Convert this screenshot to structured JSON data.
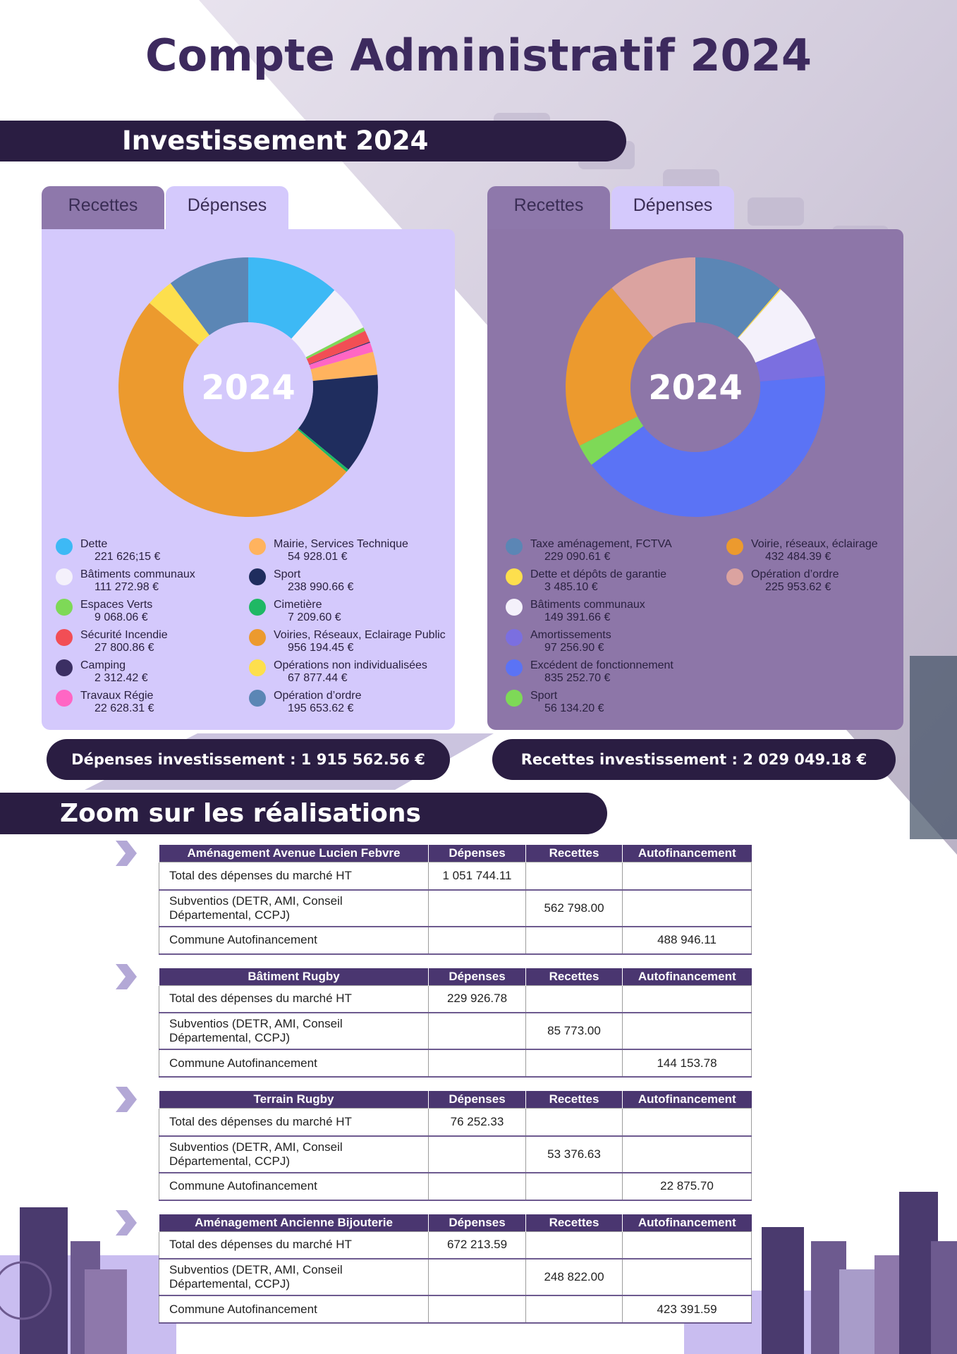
{
  "title": "Compte Administratif 2024",
  "sections": [
    "Investissement 2024",
    "Zoom sur les réalisations"
  ],
  "chart_data": [
    {
      "type": "pie",
      "tabs": [
        "Recettes",
        "Dépenses"
      ],
      "center_label": "2024",
      "categories": [
        "Dette",
        "Bâtiments communaux",
        "Espaces Verts",
        "Sécurité Incendie",
        "Camping",
        "Travaux Régie",
        "Mairie, Services Technique",
        "Sport",
        "Cimetière",
        "Voiries, Réseaux, Eclairage Public",
        "Opérations non individualisées",
        "Opération d’ordre"
      ],
      "values": [
        221626.15,
        111272.98,
        9068.06,
        27800.86,
        2312.42,
        22628.31,
        54928.01,
        238990.66,
        7209.6,
        956194.45,
        67877.44,
        195653.62
      ],
      "value_labels": [
        "221 626;15 €",
        "111 272.98 €",
        "9 068.06 €",
        "27 800.86 €",
        "2 312.42 €",
        "22 628.31 €",
        "54 928.01 €",
        "238 990.66 €",
        "7 209.60 €",
        "956 194.45 €",
        "67 877.44 €",
        "195 653.62 €"
      ],
      "colors": [
        "#3db9f5",
        "#f4f1fb",
        "#7ed957",
        "#f24e55",
        "#3b2f63",
        "#ff66c4",
        "#ffb35e",
        "#1f2d5e",
        "#1fb864",
        "#ec9a2e",
        "#fddf4d",
        "#5b86b5"
      ],
      "total_label": "Dépenses investissement : 1 915 562.56 €"
    },
    {
      "type": "pie",
      "tabs": [
        "Recettes",
        "Dépenses"
      ],
      "center_label": "2024",
      "categories": [
        "Taxe aménagement, FCTVA",
        "Dette et dépôts de garantie",
        "Bâtiments communaux",
        "Amortissements",
        "Excédent de fonctionnement",
        "Sport",
        "Voirie, réseaux, éclairage",
        "Opération d’ordre"
      ],
      "values": [
        229090.61,
        3485.1,
        149391.66,
        97256.9,
        835252.7,
        56134.2,
        432484.39,
        225953.62
      ],
      "value_labels": [
        "229 090.61 €",
        "3 485.10 €",
        "149 391.66 €",
        "97 256.90 €",
        "835 252.70 €",
        "56 134.20 €",
        "432 484.39 €",
        "225 953.62 €"
      ],
      "colors": [
        "#5b86b5",
        "#fddf4d",
        "#f4f1fb",
        "#7b6fe0",
        "#5b73f5",
        "#7ed957",
        "#ec9a2e",
        "#dba3a0"
      ],
      "total_label": "Recettes investissement : 2 029 049.18 €"
    }
  ],
  "tables": [
    {
      "header": [
        "Aménagement Avenue Lucien Febvre",
        "Dépenses",
        "Recettes",
        "Autofinancement"
      ],
      "rows": [
        [
          "Total des dépenses du marché HT",
          "1 051 744.11",
          null,
          null
        ],
        [
          "Subventios (DETR, AMI, Conseil Départemental, CCPJ)",
          null,
          "562 798.00",
          null
        ],
        [
          "Commune Autofinancement",
          null,
          null,
          "488 946.11"
        ]
      ]
    },
    {
      "header": [
        "Bâtiment Rugby",
        "Dépenses",
        "Recettes",
        "Autofinancement"
      ],
      "rows": [
        [
          "Total des dépenses du marché HT",
          "229 926.78",
          null,
          null
        ],
        [
          "Subventios (DETR, AMI, Conseil Départemental, CCPJ)",
          null,
          "85 773.00",
          null
        ],
        [
          "Commune Autofinancement",
          null,
          null,
          "144 153.78"
        ]
      ]
    },
    {
      "header": [
        "Terrain Rugby",
        "Dépenses",
        "Recettes",
        "Autofinancement"
      ],
      "rows": [
        [
          "Total des dépenses du marché HT",
          "76 252.33",
          null,
          null
        ],
        [
          "Subventios (DETR, AMI, Conseil Départemental, CCPJ)",
          null,
          "53 376.63",
          null
        ],
        [
          "Commune Autofinancement",
          null,
          null,
          "22 875.70"
        ]
      ]
    },
    {
      "header": [
        "Aménagement Ancienne Bijouterie",
        "Dépenses",
        "Recettes",
        "Autofinancement"
      ],
      "rows": [
        [
          "Total des dépenses du marché HT",
          "672 213.59",
          null,
          null
        ],
        [
          "Subventios (DETR, AMI, Conseil Départemental, CCPJ)",
          null,
          "248 822.00",
          null
        ],
        [
          "Commune Autofinancement",
          null,
          null,
          "423 391.59"
        ]
      ]
    }
  ]
}
